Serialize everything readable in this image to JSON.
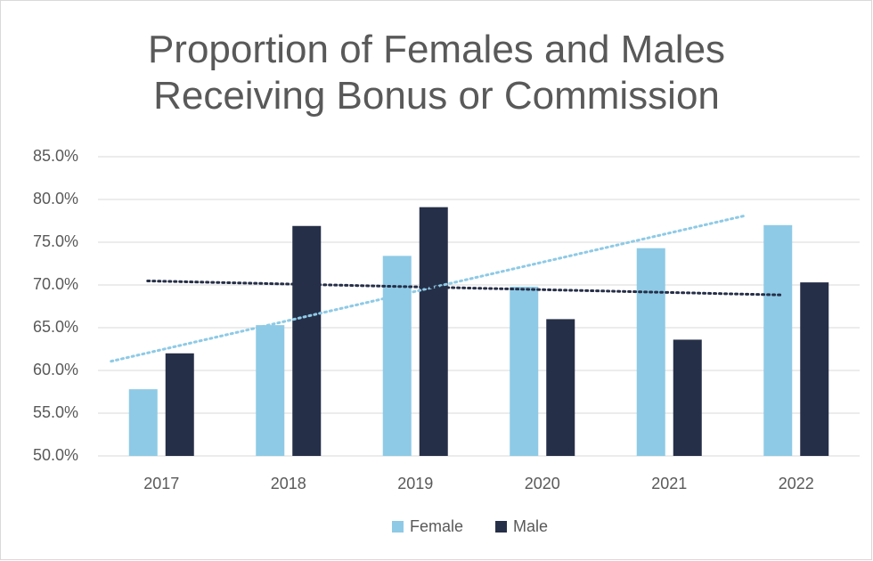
{
  "chart_data": {
    "type": "bar",
    "title": "Proportion of Females and Males Receiving Bonus or Commission",
    "categories": [
      "2017",
      "2018",
      "2019",
      "2020",
      "2021",
      "2022"
    ],
    "series": [
      {
        "name": "Female",
        "color": "#8ecae6",
        "values": [
          57.8,
          65.3,
          73.4,
          69.8,
          74.3,
          77.0
        ]
      },
      {
        "name": "Male",
        "color": "#262f48",
        "values": [
          62.0,
          76.9,
          79.1,
          66.0,
          63.6,
          70.3
        ]
      }
    ],
    "ylim": [
      50,
      85
    ],
    "yticks": [
      {
        "value": 50,
        "label": "50.0%"
      },
      {
        "value": 55,
        "label": "55.0%"
      },
      {
        "value": 60,
        "label": "60.0%"
      },
      {
        "value": 65,
        "label": "65.0%"
      },
      {
        "value": 70,
        "label": "70.0%"
      },
      {
        "value": 75,
        "label": "75.0%"
      },
      {
        "value": 80,
        "label": "80.0%"
      },
      {
        "value": 85,
        "label": "85.0%"
      }
    ],
    "grid": true,
    "trendline": true,
    "legend": "bottom"
  }
}
